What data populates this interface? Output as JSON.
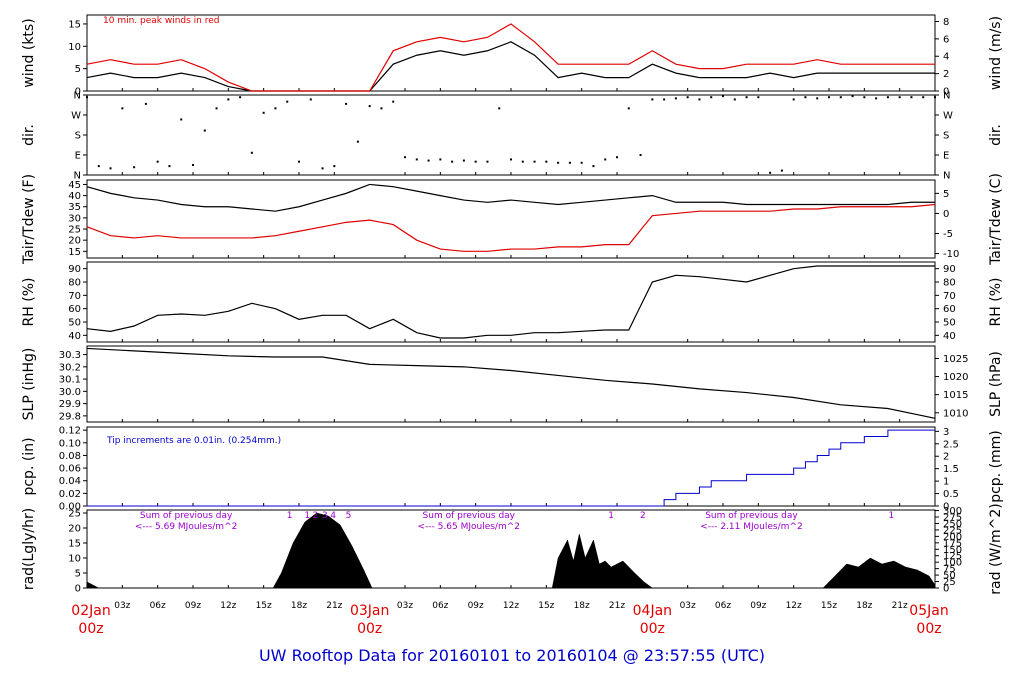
{
  "footer": "UW Rooftop Data for 20160101  to  20160104 @ 23:57:55  (UTC)",
  "colors": {
    "trace": "#000000",
    "peak": "#e00000",
    "precip": "#0000cc",
    "annot": "#9900cc",
    "day": "#e00000"
  },
  "x_axis": {
    "hour_ticks": [
      "03z",
      "06z",
      "09z",
      "12z",
      "15z",
      "18z",
      "21z",
      "03z",
      "06z",
      "09z",
      "12z",
      "15z",
      "18z",
      "21z",
      "03z",
      "06z",
      "09z",
      "12z",
      "15z",
      "18z",
      "21z"
    ],
    "hour_values": [
      3,
      6,
      9,
      12,
      15,
      18,
      21,
      27,
      30,
      33,
      36,
      39,
      42,
      45,
      51,
      54,
      57,
      60,
      63,
      66,
      69
    ],
    "day_labels": [
      {
        "date": "02Jan",
        "hour": "00z",
        "x": 0
      },
      {
        "date": "03Jan",
        "hour": "00z",
        "x": 24
      },
      {
        "date": "04Jan",
        "hour": "00z",
        "x": 48
      },
      {
        "date": "05Jan",
        "hour": "00z",
        "x": 72
      }
    ]
  },
  "chart_data": [
    {
      "type": "line",
      "ylabel_left": "wind (kts)",
      "ylabel_right": "wind (m/s)",
      "annotation": "10 min. peak winds in red",
      "left_ticks": [
        0,
        5,
        10,
        15
      ],
      "right_ticks": [
        0,
        2,
        4,
        6,
        8
      ],
      "ylim": [
        0,
        17
      ],
      "series": [
        {
          "name": "wind",
          "x": [
            0,
            2,
            4,
            6,
            8,
            10,
            12,
            14,
            16,
            18,
            20,
            22,
            24,
            26,
            28,
            30,
            32,
            34,
            36,
            38,
            40,
            42,
            44,
            46,
            48,
            50,
            52,
            54,
            56,
            58,
            60,
            62,
            64,
            66,
            68,
            70,
            72
          ],
          "y": [
            3,
            4,
            3,
            3,
            4,
            3,
            1,
            0,
            0,
            0,
            0,
            0,
            0,
            6,
            8,
            9,
            8,
            9,
            11,
            8,
            3,
            4,
            3,
            3,
            6,
            4,
            3,
            3,
            3,
            4,
            3,
            4,
            4,
            4,
            4,
            4,
            4
          ]
        },
        {
          "name": "10 min. peak winds",
          "x": [
            0,
            2,
            4,
            6,
            8,
            10,
            12,
            14,
            16,
            18,
            20,
            22,
            24,
            26,
            28,
            30,
            32,
            34,
            36,
            38,
            40,
            42,
            44,
            46,
            48,
            50,
            52,
            54,
            56,
            58,
            60,
            62,
            64,
            66,
            68,
            70,
            72
          ],
          "y": [
            6,
            7,
            6,
            6,
            7,
            5,
            2,
            0,
            0,
            0,
            0,
            0,
            0,
            9,
            11,
            12,
            11,
            12,
            15,
            11,
            6,
            6,
            6,
            6,
            9,
            6,
            5,
            5,
            6,
            6,
            6,
            7,
            6,
            6,
            6,
            6,
            6
          ]
        }
      ]
    },
    {
      "type": "scatter",
      "ylabel_left": "dir.",
      "ylabel_right": "dir.",
      "left_ticks": [
        "N",
        "E",
        "S",
        "W",
        "N"
      ],
      "right_ticks": [
        "N",
        "E",
        "S",
        "W",
        "N"
      ],
      "ylim": [
        0,
        360
      ],
      "series": [
        {
          "name": "direction",
          "x": [
            0,
            1,
            2,
            3,
            4,
            5,
            6,
            7,
            8,
            9,
            10,
            11,
            12,
            13,
            14,
            15,
            16,
            17,
            18,
            19,
            20,
            21,
            22,
            23,
            24,
            25,
            26,
            27,
            28,
            29,
            30,
            31,
            32,
            33,
            34,
            35,
            36,
            37,
            38,
            39,
            40,
            41,
            42,
            43,
            44,
            45,
            46,
            47,
            48,
            49,
            50,
            51,
            52,
            53,
            54,
            55,
            56,
            57,
            58,
            59,
            60,
            61,
            62,
            63,
            64,
            65,
            66,
            67,
            68,
            69,
            70,
            71,
            72
          ],
          "y": [
            350,
            40,
            30,
            300,
            35,
            320,
            60,
            40,
            250,
            45,
            200,
            300,
            340,
            350,
            100,
            280,
            300,
            330,
            60,
            340,
            30,
            40,
            320,
            150,
            310,
            300,
            330,
            80,
            70,
            65,
            70,
            60,
            65,
            60,
            60,
            300,
            70,
            60,
            60,
            60,
            55,
            55,
            55,
            40,
            70,
            80,
            300,
            90,
            340,
            340,
            345,
            350,
            340,
            350,
            355,
            340,
            350,
            350,
            10,
            20,
            340,
            350,
            345,
            350,
            350,
            355,
            350,
            345,
            350,
            350,
            350,
            350,
            350
          ]
        }
      ]
    },
    {
      "type": "line",
      "ylabel_left": "Tair/Tdew (F)",
      "ylabel_right": "Tair/Tdew (C)",
      "left_ticks": [
        15,
        20,
        25,
        30,
        35,
        40,
        45
      ],
      "right_ticks": [
        -10,
        -5,
        0,
        5
      ],
      "ylim": [
        12,
        47
      ],
      "series": [
        {
          "name": "Tair",
          "x": [
            0,
            2,
            4,
            6,
            8,
            10,
            12,
            14,
            16,
            18,
            20,
            22,
            24,
            26,
            28,
            30,
            32,
            34,
            36,
            38,
            40,
            42,
            44,
            46,
            48,
            50,
            52,
            54,
            56,
            58,
            60,
            62,
            64,
            66,
            68,
            70,
            72
          ],
          "y": [
            44,
            41,
            39,
            38,
            36,
            35,
            35,
            34,
            33,
            35,
            38,
            41,
            45,
            44,
            42,
            40,
            38,
            37,
            38,
            37,
            36,
            37,
            38,
            39,
            40,
            37,
            37,
            37,
            36,
            36,
            36,
            36,
            36,
            36,
            36,
            37,
            37
          ]
        },
        {
          "name": "Tdew",
          "x": [
            0,
            2,
            4,
            6,
            8,
            10,
            12,
            14,
            16,
            18,
            20,
            22,
            24,
            26,
            28,
            30,
            32,
            34,
            36,
            38,
            40,
            42,
            44,
            46,
            48,
            50,
            52,
            54,
            56,
            58,
            60,
            62,
            64,
            66,
            68,
            70,
            72
          ],
          "y": [
            26,
            22,
            21,
            22,
            21,
            21,
            21,
            21,
            22,
            24,
            26,
            28,
            29,
            27,
            20,
            16,
            15,
            15,
            16,
            16,
            17,
            17,
            18,
            18,
            31,
            32,
            33,
            33,
            33,
            33,
            34,
            34,
            35,
            35,
            35,
            35,
            36
          ]
        }
      ]
    },
    {
      "type": "line",
      "ylabel_left": "RH (%)",
      "ylabel_right": "RH (%)",
      "left_ticks": [
        40,
        50,
        60,
        70,
        80,
        90
      ],
      "right_ticks": [
        40,
        50,
        60,
        70,
        80,
        90
      ],
      "ylim": [
        35,
        95
      ],
      "series": [
        {
          "name": "RH",
          "x": [
            0,
            2,
            4,
            6,
            8,
            10,
            12,
            14,
            16,
            18,
            20,
            22,
            24,
            26,
            28,
            30,
            32,
            34,
            36,
            38,
            40,
            42,
            44,
            46,
            48,
            50,
            52,
            54,
            56,
            58,
            60,
            62,
            64,
            66,
            68,
            70,
            72
          ],
          "y": [
            45,
            43,
            47,
            55,
            56,
            55,
            58,
            64,
            60,
            52,
            55,
            55,
            45,
            52,
            42,
            38,
            38,
            40,
            40,
            42,
            42,
            43,
            44,
            44,
            80,
            85,
            84,
            82,
            80,
            85,
            90,
            92,
            92,
            92,
            92,
            92,
            92
          ]
        }
      ]
    },
    {
      "type": "line",
      "ylabel_left": "SLP (inHg)",
      "ylabel_right": "SLP (hPa)",
      "left_ticks": [
        "29.8",
        "29.9",
        "30.0",
        "30.1",
        "30.2",
        "30.3"
      ],
      "right_ticks": [
        1010,
        1015,
        1020,
        1025
      ],
      "ylim": [
        29.75,
        30.37
      ],
      "series": [
        {
          "name": "SLP",
          "x": [
            0,
            4,
            8,
            12,
            16,
            20,
            24,
            28,
            32,
            36,
            40,
            44,
            48,
            52,
            56,
            60,
            64,
            68,
            72
          ],
          "y": [
            30.35,
            30.33,
            30.31,
            30.29,
            30.28,
            30.28,
            30.22,
            30.21,
            30.2,
            30.17,
            30.13,
            30.09,
            30.06,
            30.02,
            29.99,
            29.95,
            29.89,
            29.86,
            29.78
          ]
        }
      ]
    },
    {
      "type": "line",
      "ylabel_left": "pcp. (in)",
      "ylabel_right": "pcp. (mm)",
      "annotation": "Tip increments are 0.01in. (0.254mm.)",
      "left_ticks": [
        "0.00",
        "0.02",
        "0.04",
        "0.06",
        "0.08",
        "0.10",
        "0.12"
      ],
      "right_ticks": [
        "0",
        "0.5",
        "1",
        "1.5",
        "2",
        "2.5",
        "3"
      ],
      "ylim": [
        0,
        0.125
      ],
      "series": [
        {
          "name": "precip",
          "x": [
            0,
            48.5,
            49,
            50,
            52,
            53,
            56,
            60,
            61,
            62,
            63,
            64,
            65,
            66,
            68,
            70,
            72
          ],
          "y": [
            0,
            0,
            0.01,
            0.02,
            0.03,
            0.04,
            0.05,
            0.06,
            0.07,
            0.08,
            0.09,
            0.1,
            0.1,
            0.11,
            0.12,
            0.12,
            0.12
          ]
        }
      ]
    },
    {
      "type": "area",
      "ylabel_left": "rad(Lgly/hr)",
      "ylabel_right": "rad (W/m^2)",
      "left_ticks": [
        0,
        5,
        10,
        15,
        20,
        25
      ],
      "right_ticks": [
        0,
        25,
        50,
        75,
        100,
        125,
        150,
        175,
        200,
        225,
        250,
        275,
        300
      ],
      "ylim": [
        0,
        26
      ],
      "annotations": [
        {
          "line1": "Sum of previous day",
          "line2": "<--- 5.69 MJoules/m^2",
          "x": 4
        },
        {
          "line1": "Sum of previous day",
          "line2": "<--- 5.65 MJoules/m^2",
          "x": 28
        },
        {
          "line1": "Sum of previous day",
          "line2": "<--- 2.11 MJoules/m^2",
          "x": 52
        }
      ],
      "markers": [
        {
          "label": "1",
          "x": 17.2
        },
        {
          "label": "1",
          "x": 18.7
        },
        {
          "label": "2",
          "x": 19.4
        },
        {
          "label": "3",
          "x": 20.2
        },
        {
          "label": "4",
          "x": 20.9
        },
        {
          "label": "5",
          "x": 22.2
        },
        {
          "label": "1",
          "x": 44.5
        },
        {
          "label": "2",
          "x": 47.2
        },
        {
          "label": "1",
          "x": 68.3
        }
      ],
      "series": [
        {
          "name": "radiation",
          "x": [
            0,
            0.5,
            1,
            15.8,
            16.5,
            17.5,
            18.5,
            19.5,
            20.5,
            21.5,
            22.5,
            23.5,
            24.2,
            39.5,
            40,
            40.8,
            41.3,
            41.8,
            42.3,
            43,
            43.5,
            44,
            44.5,
            45.5,
            46.5,
            47.3,
            48,
            62.5,
            63.5,
            64.5,
            65.5,
            66.5,
            67.5,
            68.5,
            69.5,
            70.5,
            71.5,
            72
          ],
          "y": [
            2,
            1,
            0,
            0,
            5,
            15,
            22,
            25,
            24,
            21,
            14,
            6,
            0,
            0,
            10,
            16,
            9,
            18,
            10,
            16,
            8,
            9,
            7,
            9,
            5,
            2,
            0,
            0,
            4,
            8,
            7,
            10,
            8,
            9,
            7,
            6,
            4,
            1
          ]
        }
      ]
    }
  ]
}
